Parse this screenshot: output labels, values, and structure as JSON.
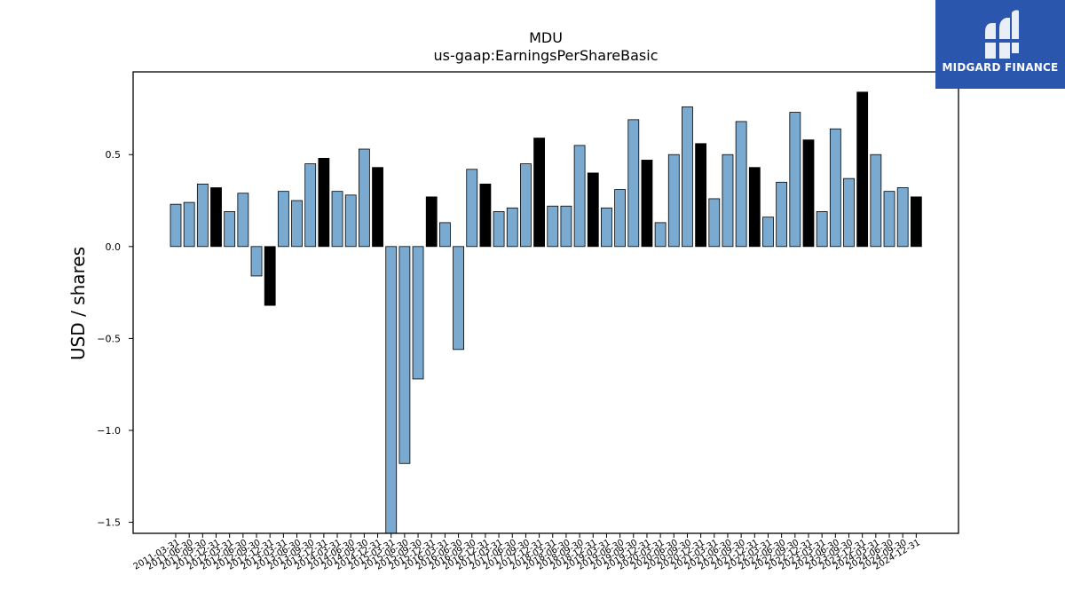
{
  "title": "MDU",
  "subtitle": "us-gaap:EarningsPerShareBasic",
  "brand": {
    "name": "MIDGARD FINANCE",
    "background": "#2a56ad"
  },
  "chart_data": {
    "type": "bar",
    "title": "MDU",
    "subtitle": "us-gaap:EarningsPerShareBasic",
    "xlabel": "",
    "ylabel": "USD / shares",
    "ylim": [
      -1.56,
      0.95
    ],
    "yticks": [
      -1.5,
      -1.0,
      -0.5,
      0.0,
      0.5
    ],
    "ytick_labels": [
      "−1.5",
      "−1.0",
      "−0.5",
      "0.0",
      "0.5"
    ],
    "grid": false,
    "colors": {
      "quarter": "#7aaad0",
      "year_end": "#000000"
    },
    "categories": [
      "2011-03-31",
      "2011-06-30",
      "2011-09-30",
      "2011-12-31",
      "2012-03-31",
      "2012-06-30",
      "2012-09-30",
      "2012-12-31",
      "2013-03-31",
      "2013-06-30",
      "2013-09-30",
      "2013-12-31",
      "2014-03-31",
      "2014-06-30",
      "2014-09-30",
      "2014-12-31",
      "2015-03-31",
      "2015-06-30",
      "2015-09-30",
      "2015-12-31",
      "2016-03-31",
      "2016-06-30",
      "2016-09-30",
      "2016-12-31",
      "2017-03-31",
      "2017-06-30",
      "2017-09-30",
      "2017-12-31",
      "2018-03-31",
      "2018-06-30",
      "2018-09-30",
      "2018-12-31",
      "2019-03-31",
      "2019-06-30",
      "2019-09-30",
      "2019-12-31",
      "2020-03-31",
      "2020-06-30",
      "2020-09-30",
      "2020-12-31",
      "2021-03-31",
      "2021-06-30",
      "2021-09-30",
      "2021-12-31",
      "2022-03-31",
      "2022-06-30",
      "2022-09-30",
      "2022-12-31",
      "2023-03-31",
      "2023-06-30",
      "2023-09-30",
      "2023-12-31",
      "2024-03-31",
      "2024-06-30",
      "2024-09-30",
      "2024-12-31"
    ],
    "values": [
      0.23,
      0.24,
      0.34,
      0.32,
      0.19,
      0.29,
      -0.16,
      -0.32,
      0.3,
      0.25,
      0.45,
      0.48,
      0.3,
      0.28,
      0.53,
      0.43,
      -1.6,
      -1.18,
      -0.72,
      0.27,
      0.13,
      -0.56,
      0.42,
      0.34,
      0.19,
      0.21,
      0.45,
      0.59,
      0.22,
      0.22,
      0.55,
      0.4,
      0.21,
      0.31,
      0.69,
      0.47,
      0.13,
      0.5,
      0.76,
      0.56,
      0.26,
      0.5,
      0.68,
      0.43,
      0.16,
      0.35,
      0.73,
      0.58,
      0.19,
      0.64,
      0.37,
      0.84,
      0.5,
      0.3,
      0.32,
      0.27
    ]
  }
}
